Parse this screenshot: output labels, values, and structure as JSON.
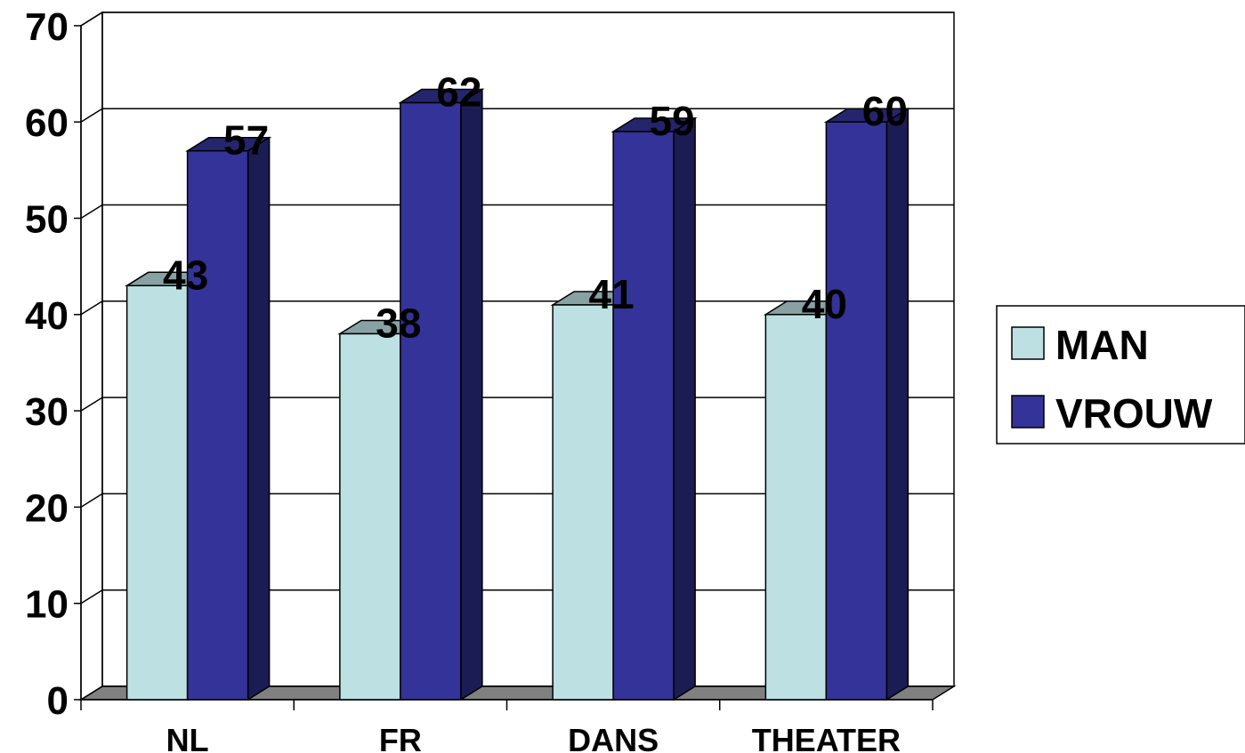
{
  "chart_data": {
    "type": "bar",
    "categories": [
      "NL",
      "FR",
      "DANS",
      "THEATER"
    ],
    "series": [
      {
        "name": "MAN",
        "values": [
          43,
          38,
          41,
          40
        ],
        "color": "#BDE1E3"
      },
      {
        "name": "VROUW",
        "values": [
          57,
          62,
          59,
          60
        ],
        "color": "#333399"
      }
    ],
    "ylim": [
      0,
      70
    ],
    "yticks": [
      "0",
      "10",
      "20",
      "30",
      "40",
      "50",
      "60",
      "70"
    ],
    "grid": true,
    "legend_position": "right",
    "style": "3d-column"
  }
}
